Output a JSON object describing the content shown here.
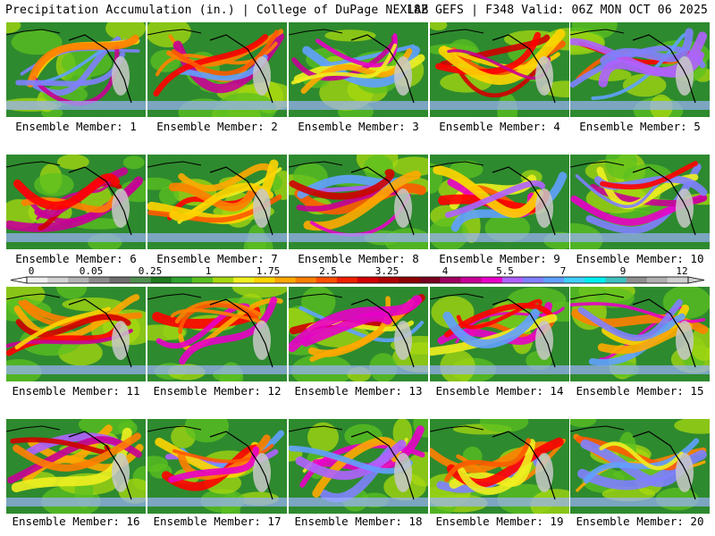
{
  "header": {
    "left_title": "Precipitation Accumulation (in.) | College of DuPage NEXLAB",
    "right_title": "18Z GEFS | F348 Valid: 06Z MON OCT 06 2025"
  },
  "colors": {
    "ocean_green": "#2e8a2e",
    "land_green": "#3a9a3a",
    "coast": "#000000",
    "bg": "#ffffff"
  },
  "chart_data": {
    "type": "heatmap",
    "title": "Precipitation Accumulation (in.)",
    "model": "18Z GEFS",
    "forecast_hour": "F348",
    "valid": "06Z MON OCT 06 2025",
    "panels": [
      {
        "member": 1,
        "label": "Ensemble Member: 1"
      },
      {
        "member": 2,
        "label": "Ensemble Member: 2"
      },
      {
        "member": 3,
        "label": "Ensemble Member: 3"
      },
      {
        "member": 4,
        "label": "Ensemble Member: 4"
      },
      {
        "member": 5,
        "label": "Ensemble Member: 5"
      },
      {
        "member": 6,
        "label": "Ensemble Member: 6"
      },
      {
        "member": 7,
        "label": "Ensemble Member: 7"
      },
      {
        "member": 8,
        "label": "Ensemble Member: 8"
      },
      {
        "member": 9,
        "label": "Ensemble Member: 9"
      },
      {
        "member": 10,
        "label": "Ensemble Member: 10"
      },
      {
        "member": 11,
        "label": "Ensemble Member: 11"
      },
      {
        "member": 12,
        "label": "Ensemble Member: 12"
      },
      {
        "member": 13,
        "label": "Ensemble Member: 13"
      },
      {
        "member": 14,
        "label": "Ensemble Member: 14"
      },
      {
        "member": 15,
        "label": "Ensemble Member: 15"
      },
      {
        "member": 16,
        "label": "Ensemble Member: 16"
      },
      {
        "member": 17,
        "label": "Ensemble Member: 17"
      },
      {
        "member": 18,
        "label": "Ensemble Member: 18"
      },
      {
        "member": 19,
        "label": "Ensemble Member: 19"
      },
      {
        "member": 20,
        "label": "Ensemble Member: 20"
      }
    ],
    "colorbar": {
      "tick_labels": [
        "0",
        "0.05",
        "0.25",
        "1",
        "1.75",
        "2.5",
        "3.25",
        "4",
        "5.5",
        "7",
        "9",
        "12"
      ],
      "colors": [
        "#f0f0f0",
        "#d4d4d4",
        "#b4b4b4",
        "#8c8c8c",
        "#6e6e6e",
        "#4f8f4f",
        "#1f7a1f",
        "#2fa32f",
        "#5cc020",
        "#a8d810",
        "#f0f020",
        "#ffd400",
        "#ffa800",
        "#ff7f00",
        "#ff5000",
        "#ee2000",
        "#d00000",
        "#b00000",
        "#8f0000",
        "#7a0020",
        "#a00060",
        "#c80096",
        "#e800c8",
        "#b060ff",
        "#8080ff",
        "#60a0ff",
        "#40d0ff",
        "#00f0f0",
        "#40c0c0",
        "#909090",
        "#b0b0b0",
        "#d0d0d0"
      ]
    }
  }
}
